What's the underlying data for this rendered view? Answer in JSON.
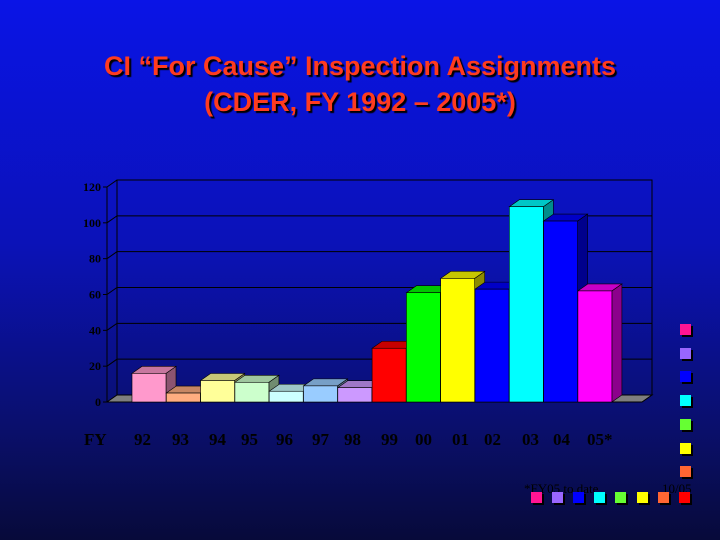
{
  "title_line1": "CI “For Cause” Inspection Assignments",
  "title_line2": "(CDER, FY 1992 – 2005*)",
  "x_axis_prefix": "FY",
  "footnote": "*FY05 to date",
  "date_stamp": "10/05",
  "chart_data": {
    "type": "bar",
    "style": "3d",
    "categories": [
      "92",
      "93",
      "94",
      "95",
      "96",
      "97",
      "98",
      "99",
      "00",
      "01",
      "02",
      "03",
      "04",
      "05*"
    ],
    "values": [
      16,
      5,
      12,
      11,
      6,
      9,
      8,
      30,
      61,
      69,
      63,
      109,
      101,
      62
    ],
    "colors": [
      "#ff99cc",
      "#ffad80",
      "#ffff99",
      "#ccffcc",
      "#ccffff",
      "#99ccff",
      "#cc99ff",
      "#ff0000",
      "#00ff00",
      "#ffff00",
      "#0000ff",
      "#00ffff",
      "#0000ff",
      "#ff00ff"
    ],
    "yticks": [
      "0",
      "20",
      "40",
      "60",
      "80",
      "100",
      "120"
    ],
    "ylim": [
      0,
      120
    ],
    "grid": true,
    "legend": false
  },
  "decor_squares_right": [
    "#ff1493",
    "#9966ff",
    "#0000ff",
    "#00ffff",
    "#66ff33",
    "#ffff00",
    "#ff6633"
  ],
  "decor_squares_bottom": [
    "#ff1493",
    "#9966ff",
    "#0000ff",
    "#00ffff",
    "#66ff33",
    "#ffff00",
    "#ff6633",
    "#ff0000"
  ]
}
